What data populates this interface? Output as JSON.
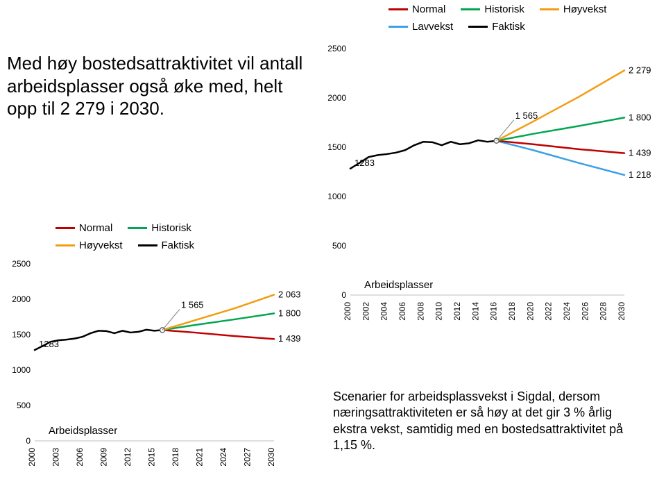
{
  "intro_text": "Med høy bostedsattraktivitet vil antall arbeidsplasser også øke med, helt opp til 2 279 i 2030.",
  "legend": {
    "normal": "Normal",
    "historisk": "Historisk",
    "hoyvekst": "Høyvekst",
    "lavvekst": "Lavvekst",
    "faktisk": "Faktisk"
  },
  "caption_text": "Scenarier for arbeidsplassvekst i Sigdal, dersom næringsattraktiviteten er så høy at det gir 3 % årlig ekstra vekst, samtidig med en bostedsattraktivitet på 1,15 %.",
  "colors": {
    "normal": "#c00000",
    "historisk": "#00a651",
    "hoyvekst": "#f39c12",
    "lavvekst": "#3ca0e6",
    "faktisk": "#000000",
    "axis": "#bfbfbf",
    "text": "#000000"
  },
  "chart_right": {
    "title": "Arbeidsplasser",
    "x": {
      "min": 2000,
      "max": 2030,
      "ticks": [
        2000,
        2002,
        2004,
        2006,
        2008,
        2010,
        2012,
        2014,
        2016,
        2018,
        2020,
        2022,
        2024,
        2026,
        2028,
        2030
      ]
    },
    "y": {
      "min": 0,
      "max": 2500,
      "ticks": [
        0,
        500,
        1000,
        1500,
        2000,
        2500
      ]
    },
    "line_width": 2.5,
    "tick_fontsize": 12,
    "series": {
      "faktisk": [
        [
          2000,
          1283
        ],
        [
          2001,
          1340
        ],
        [
          2002,
          1400
        ],
        [
          2003,
          1420
        ],
        [
          2004,
          1430
        ],
        [
          2005,
          1445
        ],
        [
          2006,
          1470
        ],
        [
          2007,
          1520
        ],
        [
          2008,
          1555
        ],
        [
          2009,
          1550
        ],
        [
          2010,
          1520
        ],
        [
          2011,
          1555
        ],
        [
          2012,
          1530
        ],
        [
          2013,
          1540
        ],
        [
          2014,
          1570
        ],
        [
          2015,
          1555
        ],
        [
          2016,
          1565
        ]
      ],
      "normal": [
        [
          2016,
          1565
        ],
        [
          2020,
          1530
        ],
        [
          2025,
          1480
        ],
        [
          2030,
          1439
        ]
      ],
      "historisk": [
        [
          2016,
          1565
        ],
        [
          2020,
          1635
        ],
        [
          2025,
          1715
        ],
        [
          2030,
          1800
        ]
      ],
      "hoyvekst": [
        [
          2016,
          1565
        ],
        [
          2020,
          1760
        ],
        [
          2025,
          2010
        ],
        [
          2030,
          2279
        ]
      ],
      "lavvekst": [
        [
          2016,
          1565
        ],
        [
          2020,
          1470
        ],
        [
          2025,
          1340
        ],
        [
          2030,
          1218
        ]
      ]
    },
    "marker_label": "1 565",
    "start_label": "1283",
    "end_labels": {
      "hoyvekst": "2 279",
      "historisk": "1 800",
      "normal": "1 439",
      "lavvekst": "1 218"
    }
  },
  "chart_left": {
    "title": "Arbeidsplasser",
    "x": {
      "min": 2000,
      "max": 2030,
      "ticks": [
        2000,
        2003,
        2006,
        2009,
        2012,
        2015,
        2018,
        2021,
        2024,
        2027,
        2030
      ]
    },
    "y": {
      "min": 0,
      "max": 2500,
      "ticks": [
        0,
        500,
        1000,
        1500,
        2000,
        2500
      ]
    },
    "line_width": 2.5,
    "tick_fontsize": 12,
    "series": {
      "faktisk": [
        [
          2000,
          1283
        ],
        [
          2001,
          1340
        ],
        [
          2002,
          1400
        ],
        [
          2003,
          1420
        ],
        [
          2004,
          1430
        ],
        [
          2005,
          1445
        ],
        [
          2006,
          1470
        ],
        [
          2007,
          1520
        ],
        [
          2008,
          1555
        ],
        [
          2009,
          1550
        ],
        [
          2010,
          1520
        ],
        [
          2011,
          1555
        ],
        [
          2012,
          1530
        ],
        [
          2013,
          1540
        ],
        [
          2014,
          1570
        ],
        [
          2015,
          1555
        ],
        [
          2016,
          1565
        ]
      ],
      "normal": [
        [
          2016,
          1565
        ],
        [
          2020,
          1530
        ],
        [
          2025,
          1480
        ],
        [
          2030,
          1439
        ]
      ],
      "historisk": [
        [
          2016,
          1565
        ],
        [
          2020,
          1635
        ],
        [
          2025,
          1715
        ],
        [
          2030,
          1800
        ]
      ],
      "hoyvekst": [
        [
          2016,
          1565
        ],
        [
          2020,
          1700
        ],
        [
          2025,
          1870
        ],
        [
          2030,
          2063
        ]
      ]
    },
    "marker_label": "1 565",
    "start_label": "1283",
    "end_labels": {
      "hoyvekst": "2 063",
      "historisk": "1 800",
      "normal": "1 439"
    }
  }
}
